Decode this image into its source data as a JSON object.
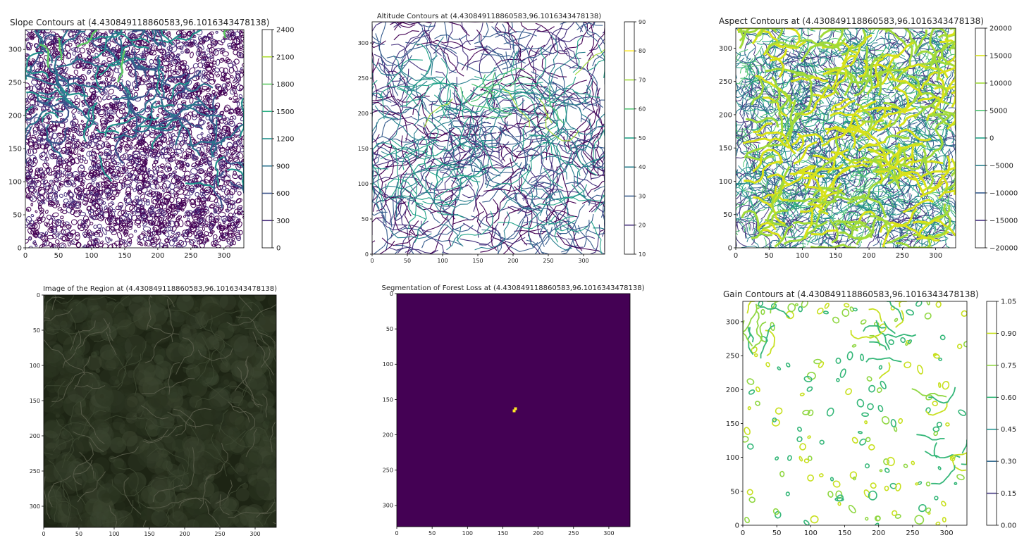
{
  "chart_data": [
    {
      "id": "slope",
      "type": "contour",
      "title": "Slope Contours at (4.430849118860583,96.1016343478138)",
      "xlim": [
        0,
        330
      ],
      "ylim": [
        0,
        330
      ],
      "x_ticks": [
        "0",
        "50",
        "100",
        "150",
        "200",
        "250",
        "300"
      ],
      "y_ticks": [
        "0",
        "50",
        "100",
        "150",
        "200",
        "250",
        "300"
      ],
      "y_direction": "up",
      "colorbar": {
        "range": [
          0,
          2400
        ],
        "ticks": [
          "0",
          "300",
          "600",
          "900",
          "1200",
          "1500",
          "1800",
          "2100",
          "2400"
        ]
      },
      "colors": [
        "#440154",
        "#472d7b",
        "#3b528b",
        "#2c728e",
        "#21918c",
        "#28ae80",
        "#5ec962",
        "#addc30"
      ]
    },
    {
      "id": "altitude",
      "type": "contour",
      "title": "Altitude Contours at (4.430849118860583,96.1016343478138)",
      "xlim": [
        0,
        330
      ],
      "ylim": [
        0,
        330
      ],
      "x_ticks": [
        "0",
        "50",
        "100",
        "150",
        "200",
        "250",
        "300"
      ],
      "y_ticks": [
        "0",
        "50",
        "100",
        "150",
        "200",
        "250",
        "300"
      ],
      "y_direction": "up",
      "colorbar": {
        "range": [
          10,
          90
        ],
        "ticks": [
          "10",
          "20",
          "30",
          "40",
          "50",
          "60",
          "70",
          "80",
          "90"
        ]
      },
      "colors": [
        "#440154",
        "#46327e",
        "#365c8d",
        "#277f8e",
        "#1fa187",
        "#4ac16d",
        "#a0da39",
        "#fde725"
      ]
    },
    {
      "id": "aspect",
      "type": "contour",
      "title": "Aspect Contours at (4.430849118860583,96.1016343478138)",
      "xlim": [
        0,
        330
      ],
      "ylim": [
        0,
        330
      ],
      "x_ticks": [
        "0",
        "50",
        "100",
        "150",
        "200",
        "250",
        "300"
      ],
      "y_ticks": [
        "0",
        "50",
        "100",
        "150",
        "200",
        "250",
        "300"
      ],
      "y_direction": "up",
      "colorbar": {
        "range": [
          -20000,
          20000
        ],
        "ticks": [
          "−20000",
          "−15000",
          "−10000",
          "−5000",
          "0",
          "5000",
          "10000",
          "15000",
          "20000"
        ]
      },
      "colors": [
        "#440154",
        "#46327e",
        "#365c8d",
        "#277f8e",
        "#1fa187",
        "#4ac16d",
        "#a0da39",
        "#d8e219"
      ]
    },
    {
      "id": "image",
      "type": "image",
      "title": "Image of the Region at (4.430849118860583,96.1016343478138)",
      "xlim": [
        0,
        330
      ],
      "ylim": [
        0,
        330
      ],
      "x_ticks": [
        "0",
        "50",
        "100",
        "150",
        "200",
        "250",
        "300"
      ],
      "y_ticks": [
        "0",
        "50",
        "100",
        "150",
        "200",
        "250",
        "300"
      ],
      "y_direction": "down",
      "colors": [
        "#1d2414",
        "#2a3320",
        "#3b4530",
        "#565a48"
      ]
    },
    {
      "id": "segmentation",
      "type": "heatmap",
      "title": "Segmentation of Forest Loss at (4.430849118860583,96.1016343478138)",
      "xlim": [
        0,
        330
      ],
      "ylim": [
        0,
        330
      ],
      "x_ticks": [
        "0",
        "50",
        "100",
        "150",
        "200",
        "250",
        "300"
      ],
      "y_ticks": [
        "0",
        "50",
        "100",
        "150",
        "200",
        "250",
        "300"
      ],
      "y_direction": "down",
      "background_color": "#440154",
      "highlight_color": "#fde725",
      "highlight_points": [
        [
          166,
          166
        ],
        [
          168,
          163
        ]
      ]
    },
    {
      "id": "gain",
      "type": "contour",
      "title": "Gain Contours at (4.430849118860583,96.1016343478138)",
      "xlim": [
        0,
        330
      ],
      "ylim": [
        0,
        330
      ],
      "x_ticks": [
        "0",
        "50",
        "100",
        "150",
        "200",
        "250",
        "300"
      ],
      "y_ticks": [
        "0",
        "50",
        "100",
        "150",
        "200",
        "250",
        "300"
      ],
      "y_direction": "up",
      "colorbar": {
        "range": [
          0,
          1.05
        ],
        "ticks": [
          "0.00",
          "0.15",
          "0.30",
          "0.45",
          "0.60",
          "0.75",
          "0.90",
          "1.05"
        ]
      },
      "colors": [
        "#440154",
        "#443983",
        "#31688e",
        "#21918c",
        "#35b779",
        "#90d743",
        "#c8e020"
      ]
    }
  ]
}
